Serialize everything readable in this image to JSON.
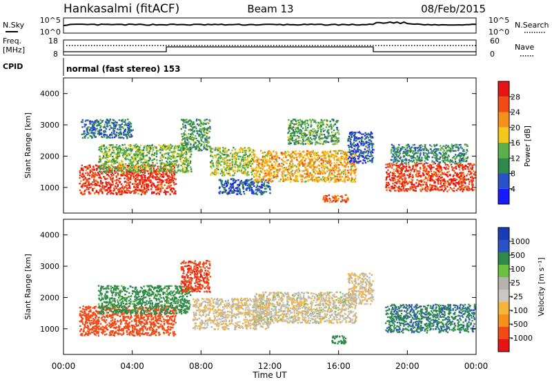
{
  "header": {
    "station": "Hankasalmi (fitACF)",
    "beam": "Beam 13",
    "date": "08/Feb/2015"
  },
  "top_panels": {
    "nsky_label": "N.Sky",
    "nsearch_label": "N.Search",
    "noise_ticks": [
      "10^5",
      "10^0"
    ],
    "freq_label": "Freq.",
    "freq_unit": "[MHz]",
    "freq_ticks": [
      "18",
      "8"
    ],
    "nave_label": "Nave",
    "nave_ticks": [
      "60",
      "0"
    ],
    "cpid_label": "CPID",
    "cpid_text": "normal (fast stereo) 153"
  },
  "colors": {
    "power": [
      "#1a1aff",
      "#2a52c8",
      "#2e8a4a",
      "#5ab04a",
      "#f2c81a",
      "#f5901a",
      "#f24a14",
      "#e61414"
    ],
    "velocity": [
      "#e61414",
      "#f24a14",
      "#f5901a",
      "#f5b43c",
      "#c8c8c0",
      "#b4b4ac",
      "#6cc040",
      "#2e8a4a",
      "#2a52c8",
      "#1a3cb4"
    ]
  },
  "chart_data": [
    {
      "type": "heatmap",
      "name": "power",
      "xlabel": "",
      "ylabel": "Slant Range [km]",
      "x_ticks": [
        "00:00",
        "04:00",
        "08:00",
        "12:00",
        "16:00",
        "20:00",
        "00:00"
      ],
      "y_ticks": [
        "1000",
        "2000",
        "3000",
        "4000"
      ],
      "xlim_hours": [
        0,
        24
      ],
      "ylim_km": [
        180,
        4500
      ],
      "colorbar_label": "Power [dB]",
      "colorbar_ticks": [
        "4",
        "8",
        "12",
        "16",
        "20",
        "24",
        "28"
      ],
      "colorbar_range": [
        0,
        32
      ],
      "echo_regions": [
        {
          "t": [
            0.9,
            6.5
          ],
          "r": [
            800,
            1750
          ],
          "level": 28
        },
        {
          "t": [
            2.0,
            7.4
          ],
          "r": [
            1500,
            2400
          ],
          "level": 14
        },
        {
          "t": [
            1.0,
            4.0
          ],
          "r": [
            2600,
            3200
          ],
          "level": 8
        },
        {
          "t": [
            6.8,
            8.5
          ],
          "r": [
            2200,
            3200
          ],
          "level": 12
        },
        {
          "t": [
            8.5,
            11.0
          ],
          "r": [
            1400,
            2300
          ],
          "level": 16
        },
        {
          "t": [
            9.0,
            12.0
          ],
          "r": [
            800,
            1300
          ],
          "level": 6
        },
        {
          "t": [
            11.0,
            17.0
          ],
          "r": [
            1200,
            2200
          ],
          "level": 20
        },
        {
          "t": [
            13.0,
            16.0
          ],
          "r": [
            2400,
            3200
          ],
          "level": 12
        },
        {
          "t": [
            15.0,
            16.5
          ],
          "r": [
            550,
            800
          ],
          "level": 26
        },
        {
          "t": [
            16.5,
            18.0
          ],
          "r": [
            1800,
            2800
          ],
          "level": 6
        },
        {
          "t": [
            18.7,
            23.9
          ],
          "r": [
            900,
            1800
          ],
          "level": 27
        },
        {
          "t": [
            19.0,
            23.5
          ],
          "r": [
            1800,
            2400
          ],
          "level": 10
        }
      ]
    },
    {
      "type": "heatmap",
      "name": "velocity",
      "xlabel": "Time UT",
      "ylabel": "Slant Range [km]",
      "x_ticks": [
        "00:00",
        "04:00",
        "08:00",
        "12:00",
        "16:00",
        "20:00",
        "00:00"
      ],
      "y_ticks": [
        "1000",
        "2000",
        "3000",
        "4000"
      ],
      "xlim_hours": [
        0,
        24
      ],
      "ylim_km": [
        180,
        4500
      ],
      "colorbar_label": "Velocity [m s⁻¹]",
      "colorbar_ticks": [
        "1000",
        "500",
        "100",
        "25",
        "-25",
        "-100",
        "-500",
        "-1000"
      ],
      "echo_regions": [
        {
          "t": [
            0.9,
            6.5
          ],
          "r": [
            800,
            1750
          ],
          "v": -300
        },
        {
          "t": [
            2.0,
            7.4
          ],
          "r": [
            1500,
            2400
          ],
          "v": 200
        },
        {
          "t": [
            6.8,
            8.5
          ],
          "r": [
            2200,
            3200
          ],
          "v": -400
        },
        {
          "t": [
            7.5,
            12.0
          ],
          "r": [
            1000,
            2000
          ],
          "v": 0
        },
        {
          "t": [
            11.0,
            17.0
          ],
          "r": [
            1200,
            2200
          ],
          "v": 5
        },
        {
          "t": [
            15.5,
            16.5
          ],
          "r": [
            550,
            800
          ],
          "v": 300
        },
        {
          "t": [
            16.5,
            18.0
          ],
          "r": [
            1800,
            2800
          ],
          "v": 0
        },
        {
          "t": [
            18.7,
            23.9
          ],
          "r": [
            900,
            1800
          ],
          "v": 400
        }
      ]
    }
  ]
}
